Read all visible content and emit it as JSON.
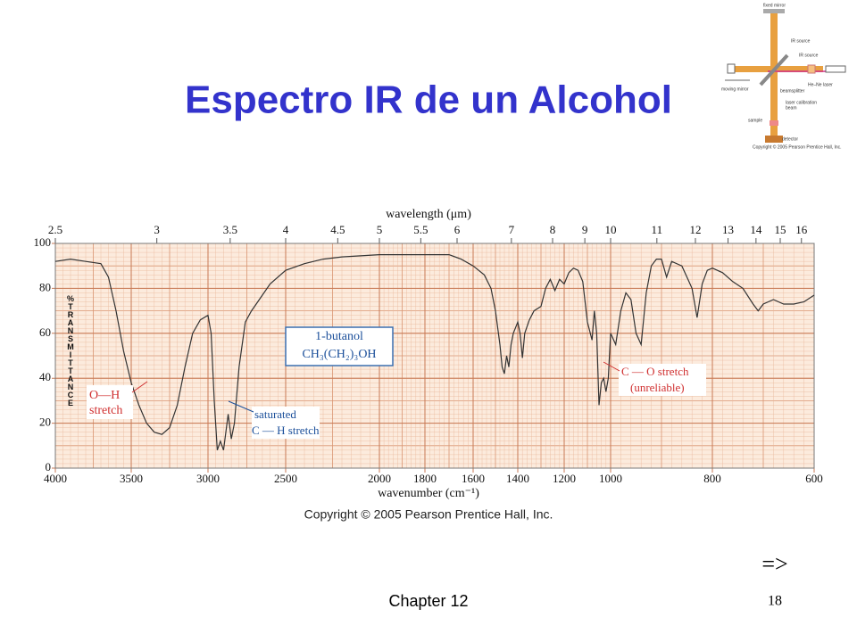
{
  "slide": {
    "title": "Espectro IR de un Alcohol",
    "copyright": "Copyright © 2005 Pearson Prentice Hall, Inc.",
    "next": "=>",
    "footer": "Chapter 12",
    "page": "18",
    "diagram": {
      "labels": [
        "fixed mirror",
        "IR source",
        "IR source",
        "He–Ne laser",
        "moving mirror",
        "beamsplitter",
        "laser calibration",
        "beam",
        "sample",
        "detector",
        "Copyright © 2005 Pearson Prentice Hall, Inc."
      ]
    }
  },
  "chart_data": {
    "type": "line",
    "xlabel": "wavenumber (cm⁻¹)",
    "x2label": "wavelength (μm)",
    "ylabel": "%TRANSMITTANCE",
    "xlim": [
      4000,
      600
    ],
    "xticks": [
      4000,
      3500,
      3000,
      2500,
      2000,
      1800,
      1600,
      1400,
      1200,
      1000,
      800,
      600
    ],
    "x2ticks": [
      2.5,
      3,
      3.5,
      4,
      4.5,
      5,
      5.5,
      6,
      7,
      8,
      9,
      10,
      11,
      12,
      13,
      14,
      15,
      16
    ],
    "ylim": [
      0,
      100
    ],
    "yticks": [
      0,
      20,
      40,
      60,
      80,
      100
    ],
    "grid": true,
    "color": "#333333",
    "annotations": [
      "1-butanol",
      "CH₃(CH₂)₃OH",
      "O—H",
      "stretch",
      "saturated",
      "C — H stretch",
      "C — O stretch",
      "(unreliable)"
    ],
    "x": [
      4000,
      3900,
      3800,
      3700,
      3650,
      3600,
      3550,
      3500,
      3450,
      3400,
      3350,
      3300,
      3250,
      3200,
      3150,
      3100,
      3050,
      3000,
      2980,
      2960,
      2940,
      2920,
      2900,
      2870,
      2850,
      2830,
      2800,
      2760,
      2720,
      2700,
      2650,
      2600,
      2500,
      2400,
      2300,
      2200,
      2000,
      1800,
      1700,
      1650,
      1600,
      1550,
      1520,
      1500,
      1480,
      1470,
      1460,
      1450,
      1440,
      1430,
      1420,
      1400,
      1390,
      1380,
      1370,
      1350,
      1330,
      1300,
      1280,
      1260,
      1240,
      1220,
      1200,
      1180,
      1160,
      1140,
      1120,
      1100,
      1080,
      1070,
      1060,
      1050,
      1040,
      1030,
      1020,
      1010,
      1000,
      990,
      980,
      970,
      960,
      950,
      940,
      930,
      920,
      910,
      900,
      890,
      880,
      860,
      850,
      840,
      830,
      820,
      810,
      800,
      780,
      760,
      740,
      720,
      710,
      700,
      680,
      660,
      640,
      620,
      600
    ],
    "values": [
      92,
      93,
      92,
      91,
      85,
      70,
      52,
      38,
      28,
      20,
      16,
      15,
      18,
      28,
      45,
      60,
      66,
      68,
      60,
      30,
      8,
      12,
      8,
      24,
      13,
      20,
      45,
      65,
      70,
      72,
      77,
      82,
      88,
      91,
      93,
      94,
      95,
      95,
      95,
      93,
      90,
      86,
      80,
      70,
      55,
      45,
      42,
      50,
      45,
      55,
      60,
      65,
      60,
      49,
      60,
      66,
      70,
      72,
      80,
      84,
      79,
      84,
      82,
      87,
      89,
      88,
      83,
      65,
      57,
      70,
      60,
      28,
      38,
      40,
      34,
      40,
      60,
      55,
      70,
      78,
      75,
      60,
      55,
      78,
      90,
      93,
      93,
      85,
      92,
      90,
      85,
      80,
      67,
      82,
      88,
      89,
      87,
      83,
      80,
      73,
      70,
      73,
      75,
      73,
      73,
      74,
      77
    ]
  }
}
